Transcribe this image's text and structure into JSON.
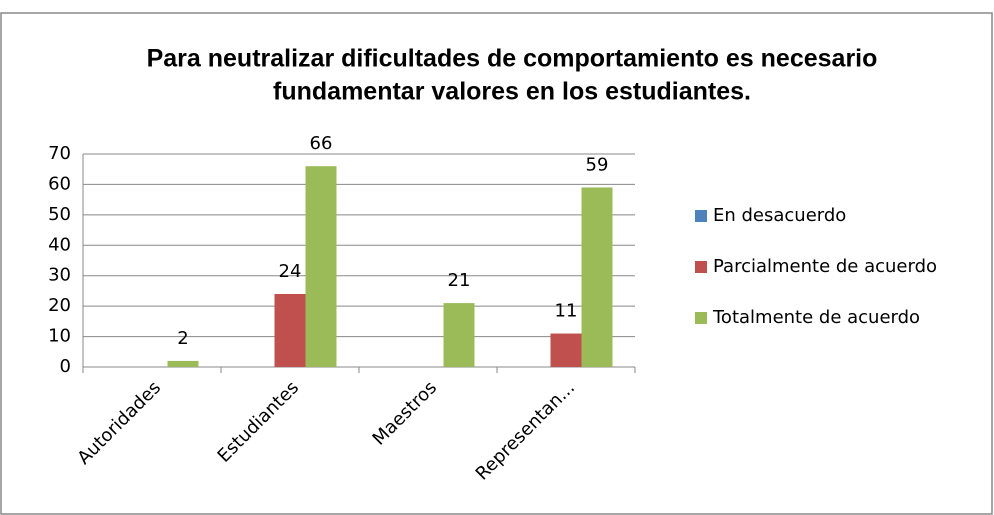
{
  "chart_data": {
    "type": "bar",
    "title": [
      "Para neutralizar dificultades de comportamiento es necesario",
      "fundamentar valores en los estudiantes."
    ],
    "categories": [
      "Autoridades",
      "Estudiantes",
      "Maestros",
      "Representan..."
    ],
    "series": [
      {
        "name": "En desacuerdo",
        "color": "#4f81bd",
        "values": [
          null,
          null,
          null,
          null
        ]
      },
      {
        "name": "Parcialmente de acuerdo",
        "color": "#c0504d",
        "values": [
          null,
          24,
          null,
          11
        ]
      },
      {
        "name": "Totalmente de acuerdo",
        "color": "#9bbb59",
        "values": [
          2,
          66,
          21,
          59
        ]
      }
    ],
    "ylim": [
      0,
      70
    ],
    "yticks": [
      0,
      10,
      20,
      30,
      40,
      50,
      60,
      70
    ],
    "grid": true,
    "legend": "right"
  }
}
